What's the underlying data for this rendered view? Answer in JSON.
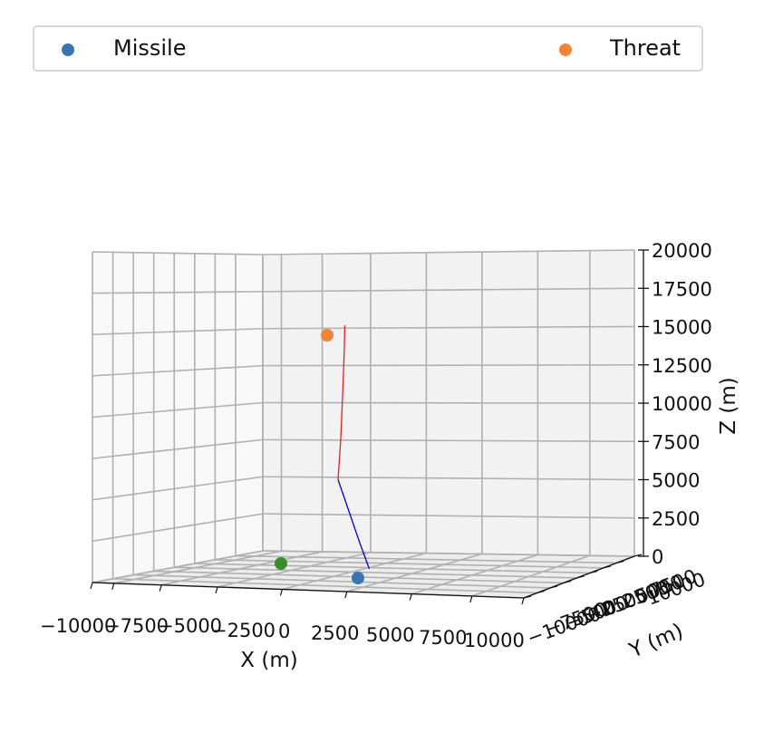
{
  "chart_data": {
    "type": "scatter3d",
    "title": "",
    "xlabel": "X (m)",
    "ylabel": "Y (m)",
    "zlabel": "Z (m)",
    "xlim": [
      -10000,
      10000
    ],
    "zlim": [
      0,
      20000
    ],
    "x_ticks": [
      "−10000",
      "−7500",
      "−5000",
      "−2500",
      "0",
      "2500",
      "5000",
      "7500",
      "10000"
    ],
    "y_ticks": [
      "−10000",
      "−7500",
      "−5000",
      "−2500",
      "0",
      "2500",
      "5000",
      "7500",
      "10000"
    ],
    "z_ticks": [
      "0",
      "2500",
      "5000",
      "7500",
      "10000",
      "12500",
      "15000",
      "17500",
      "20000"
    ],
    "grid": true,
    "legend_position": "top",
    "series": [
      {
        "name": "Missile",
        "color": "#3b75af",
        "points": [
          [
            2500,
            0,
            0
          ]
        ]
      },
      {
        "name": "Threat",
        "color": "#ef8636",
        "points": [
          [
            0,
            0,
            15000
          ]
        ]
      },
      {
        "color": "#3a8b2a",
        "points": [
          [
            -2000,
            0,
            0
          ]
        ]
      }
    ],
    "trajectories": [
      {
        "color": "#0000cc",
        "points": [
          [
            2500,
            0,
            0
          ],
          [
            1800,
            0,
            1600
          ],
          [
            900,
            0,
            3800
          ],
          [
            200,
            0,
            5500
          ]
        ]
      },
      {
        "color": "#dd2222",
        "points": [
          [
            200,
            0,
            5500
          ],
          [
            400,
            0,
            8000
          ],
          [
            550,
            0,
            11000
          ],
          [
            650,
            0,
            13200
          ],
          [
            700,
            0,
            15000
          ]
        ]
      }
    ]
  }
}
